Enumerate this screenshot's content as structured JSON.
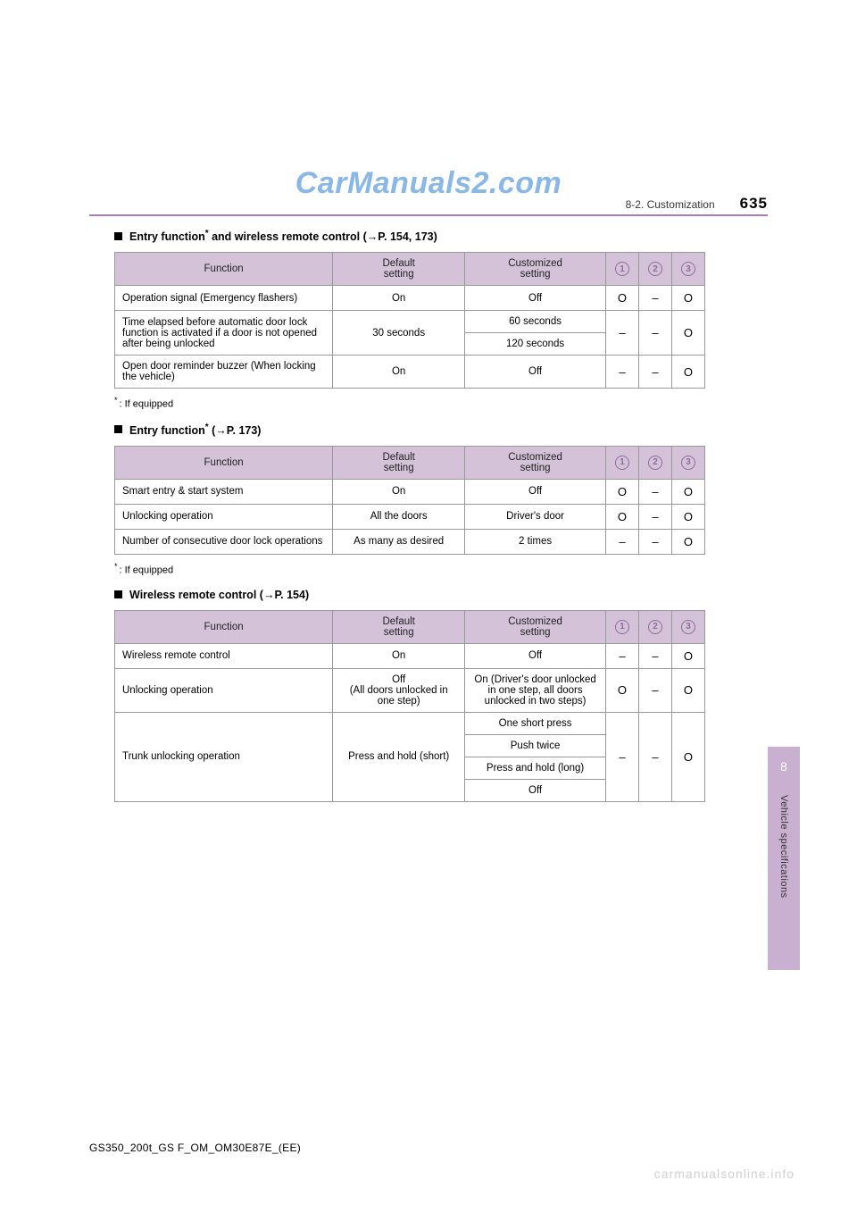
{
  "watermark_top": "CarManuals2.com",
  "watermark_bottom": "carmanualsonline.info",
  "breadcrumb": "8-2. Customization",
  "page_number": "635",
  "footer_code": "GS350_200t_GS F_OM_OM30E87E_(EE)",
  "side_tab": {
    "number": "8",
    "label": "Vehicle specifications"
  },
  "headers": {
    "function": "Function",
    "default": "Default setting",
    "custom": "Customized setting"
  },
  "circle_labels": [
    "1",
    "2",
    "3"
  ],
  "marks": {
    "yes": "O",
    "no": "–"
  },
  "sections": [
    {
      "title_pre": "Entry function",
      "title_sup": "*",
      "title_post": " and wireless remote control (→P. 154, 173)",
      "footnote": "If equipped",
      "rows": [
        {
          "fn": "Operation signal (Emergency flashers)",
          "def": "On",
          "cust": [
            "Off"
          ],
          "i": [
            "O",
            "–",
            "O"
          ]
        },
        {
          "fn": "Time elapsed before automatic door lock function is activated if a door is not opened after being unlocked",
          "def": "30 seconds",
          "cust": [
            "60 seconds",
            "120 seconds"
          ],
          "i": [
            "–",
            "–",
            "O"
          ]
        },
        {
          "fn": "Open door reminder buzzer (When locking the vehicle)",
          "def": "On",
          "cust": [
            "Off"
          ],
          "i": [
            "–",
            "–",
            "O"
          ]
        }
      ]
    },
    {
      "title_pre": "Entry function",
      "title_sup": "*",
      "title_post": " (→P. 173)",
      "footnote": "If equipped",
      "rows": [
        {
          "fn": "Smart entry & start system",
          "def": "On",
          "cust": [
            "Off"
          ],
          "i": [
            "O",
            "–",
            "O"
          ]
        },
        {
          "fn": "Unlocking operation",
          "def": "All the doors",
          "cust": [
            "Driver's door"
          ],
          "i": [
            "O",
            "–",
            "O"
          ]
        },
        {
          "fn": "Number of consecutive door lock operations",
          "def": "As many as desired",
          "cust": [
            "2 times"
          ],
          "i": [
            "–",
            "–",
            "O"
          ]
        }
      ]
    },
    {
      "title_pre": "Wireless remote control (",
      "title_sup": "",
      "title_post": "→P. 154)",
      "footnote": "",
      "rows": [
        {
          "fn": "Wireless remote control",
          "def": "On",
          "cust": [
            "Off"
          ],
          "i": [
            "–",
            "–",
            "O"
          ]
        },
        {
          "fn": "Unlocking operation",
          "def": "Off\n(All doors unlocked in one step)",
          "cust": [
            "On (Driver's door unlocked in one step, all doors unlocked in two steps)"
          ],
          "i": [
            "O",
            "–",
            "O"
          ]
        },
        {
          "fn": "Trunk unlocking operation",
          "def": "Press and hold (short)",
          "cust": [
            "One short press",
            "Push twice",
            "Press and hold (long)",
            "Off"
          ],
          "i": [
            "–",
            "–",
            "O"
          ]
        }
      ]
    }
  ]
}
